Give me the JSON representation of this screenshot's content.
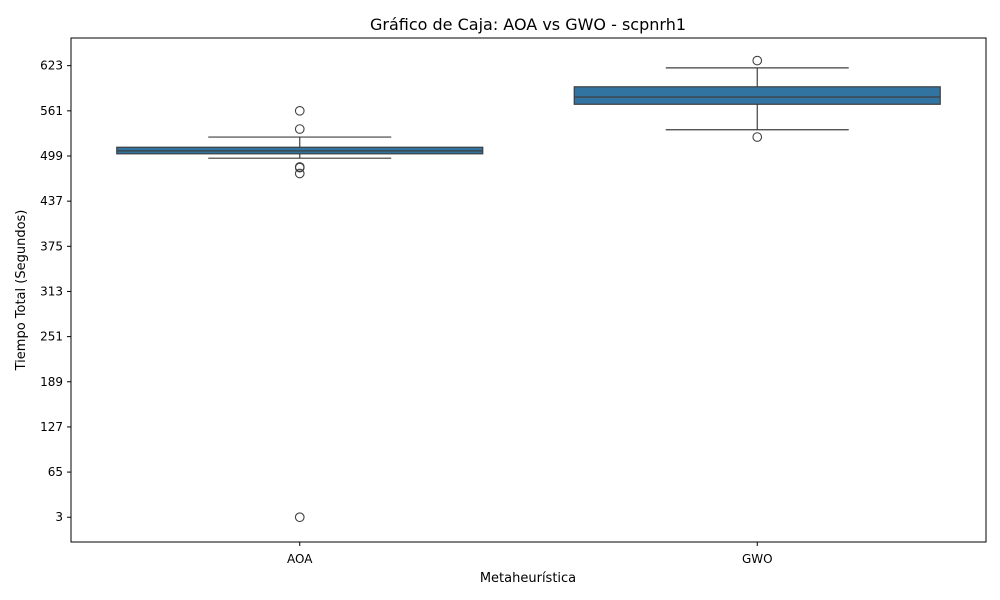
{
  "chart_data": {
    "type": "box",
    "title": "Gráfico de Caja: AOA vs GWO - scpnrh1",
    "xlabel": "Metaheurística",
    "ylabel": "Tiempo Total (Segundos)",
    "categories": [
      "AOA",
      "GWO"
    ],
    "yticks": [
      3,
      65,
      127,
      189,
      251,
      313,
      375,
      437,
      499,
      561,
      623
    ],
    "ylim": [
      -31,
      661
    ],
    "grid": false,
    "box_color": "#3274a1",
    "boxes": [
      {
        "category": "AOA",
        "q1": 502,
        "median": 506,
        "q3": 511,
        "whisker_low": 496,
        "whisker_high": 525,
        "outliers": [
          561,
          536,
          484,
          483,
          475,
          3
        ]
      },
      {
        "category": "GWO",
        "q1": 570,
        "median": 580,
        "q3": 594,
        "whisker_low": 535,
        "whisker_high": 620,
        "outliers": [
          630,
          525
        ]
      }
    ]
  }
}
